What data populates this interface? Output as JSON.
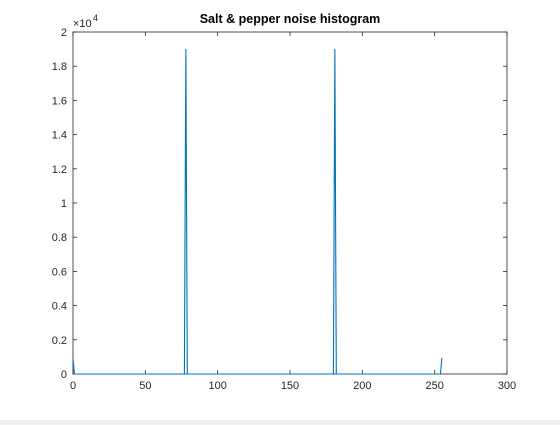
{
  "window": {
    "background": "#ffffff"
  },
  "chart_data": {
    "type": "line",
    "title": "Salt & pepper noise histogram",
    "xlabel": "",
    "ylabel": "",
    "xlim": [
      0,
      300
    ],
    "ylim": [
      0,
      20000
    ],
    "y_exponent_label": "×10",
    "y_exponent_power": "4",
    "x_ticks": [
      0,
      50,
      100,
      150,
      200,
      250,
      300
    ],
    "x_tick_labels": [
      "0",
      "50",
      "100",
      "150",
      "200",
      "250",
      "300"
    ],
    "y_ticks": [
      0,
      2000,
      4000,
      6000,
      8000,
      10000,
      12000,
      14000,
      16000,
      18000,
      20000
    ],
    "y_tick_labels": [
      "0",
      "0.2",
      "0.4",
      "0.6",
      "0.8",
      "1",
      "1.2",
      "1.4",
      "1.6",
      "1.8",
      "2"
    ],
    "grid": false,
    "line_color": "#0072bd",
    "series": [
      {
        "x": [
          0,
          1,
          2,
          3,
          76,
          77,
          78,
          79,
          80,
          179,
          180,
          181,
          182,
          253,
          254,
          255
        ],
        "y": [
          900,
          0,
          0,
          0,
          0,
          0,
          19000,
          0,
          0,
          0,
          0,
          19000,
          0,
          0,
          0,
          950
        ]
      }
    ]
  }
}
